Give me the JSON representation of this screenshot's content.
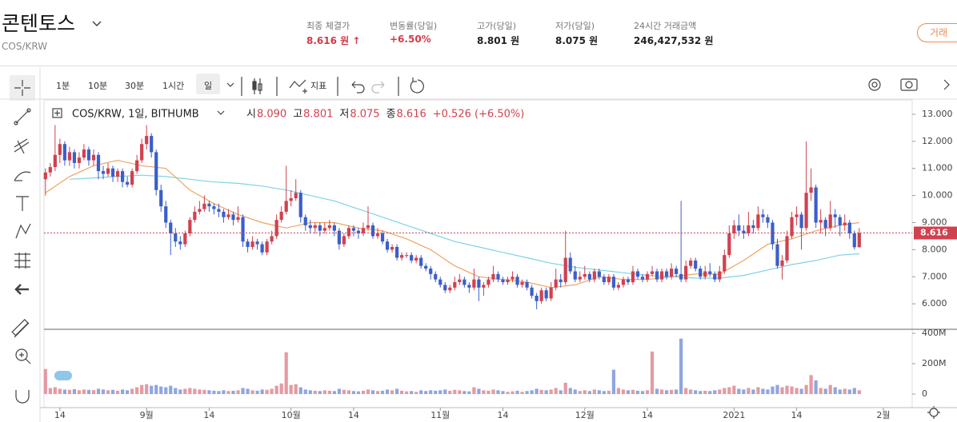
{
  "header": {
    "title": "콘텐토스",
    "pair": "COS/KRW",
    "stats": [
      {
        "label": "최종 체결가",
        "value": "8.616 원 ↑"
      },
      {
        "label": "변동률(당일)",
        "value": "+6.50%"
      },
      {
        "label": "고가(당일)",
        "value": "8.801 원"
      },
      {
        "label": "저가(당일)",
        "value": "8.075 원"
      },
      {
        "label": "24시간 거래금액",
        "value": "246,427,532 원"
      }
    ],
    "button": "거래"
  },
  "toolbar": {
    "intervals": [
      "1분",
      "10분",
      "30분",
      "1시간",
      "일"
    ],
    "indicator": "지표"
  },
  "chart_data": {
    "type": "candlestick",
    "title": "COS/KRW, 1일, BITHUMB",
    "legend": {
      "ohlc_labels": [
        "시",
        "고",
        "저",
        "종"
      ],
      "ohlc_values": [
        {
          "value": 8.09,
          "label": "8.090"
        },
        {
          "value": 8.801,
          "label": "8.801"
        },
        {
          "value": 8.075,
          "label": "8.075"
        },
        {
          "value": 8.616,
          "label": "8.616"
        }
      ],
      "change": "+0.526 (+6.50%)"
    },
    "color_up": "#d0414f",
    "color_down": "#3b5fc9",
    "xlim": [
      -0.3,
      180
    ],
    "xticks": [
      {
        "value": 3,
        "label": "14"
      },
      {
        "value": 21,
        "label": "9월"
      },
      {
        "value": 34,
        "label": "14"
      },
      {
        "value": 51,
        "label": "10월"
      },
      {
        "value": 64,
        "label": "14"
      },
      {
        "value": 82,
        "label": "11월"
      },
      {
        "value": 95,
        "label": "14"
      },
      {
        "value": 112,
        "label": "12월"
      },
      {
        "value": 125,
        "label": "14"
      },
      {
        "value": 143,
        "label": "2021"
      },
      {
        "value": 156,
        "label": "14"
      },
      {
        "value": 174,
        "label": "2월"
      }
    ],
    "ylim": [
      5.06,
      13.53
    ],
    "yticks": [
      {
        "value": 6,
        "label": "6.000"
      },
      {
        "value": 7,
        "label": "7.000"
      },
      {
        "value": 8,
        "label": "8.000"
      },
      {
        "value": 9,
        "label": "9.000"
      },
      {
        "value": 10,
        "label": "10.000"
      },
      {
        "value": 11,
        "label": "11.000"
      },
      {
        "value": 12,
        "label": "12.000"
      },
      {
        "value": 13,
        "label": "13.000"
      }
    ],
    "last_price": {
      "value": 8.616,
      "label": "8.616"
    },
    "values": [
      [
        10.6,
        11.0,
        10.0,
        10.85
      ],
      [
        10.85,
        11.2,
        10.7,
        11.05
      ],
      [
        11.05,
        12.6,
        10.9,
        11.5
      ],
      [
        11.5,
        12.1,
        11.2,
        11.9
      ],
      [
        11.9,
        12.0,
        11.1,
        11.3
      ],
      [
        11.3,
        11.8,
        11.1,
        11.6
      ],
      [
        11.6,
        11.7,
        11.0,
        11.2
      ],
      [
        11.2,
        11.6,
        11.0,
        11.4
      ],
      [
        11.4,
        11.9,
        11.3,
        11.7
      ],
      [
        11.7,
        11.8,
        11.1,
        11.3
      ],
      [
        11.3,
        11.7,
        11.1,
        11.5
      ],
      [
        11.5,
        11.6,
        10.6,
        10.9
      ],
      [
        10.9,
        11.1,
        10.6,
        10.8
      ],
      [
        10.8,
        11.2,
        10.7,
        11.0
      ],
      [
        11.0,
        11.1,
        10.5,
        10.7
      ],
      [
        10.7,
        11.0,
        10.5,
        10.9
      ],
      [
        10.9,
        11.0,
        10.3,
        10.5
      ],
      [
        10.5,
        10.7,
        10.3,
        10.4
      ],
      [
        10.4,
        11.0,
        10.3,
        10.9
      ],
      [
        10.9,
        11.5,
        10.8,
        11.3
      ],
      [
        11.3,
        12.1,
        11.2,
        11.9
      ],
      [
        11.9,
        12.6,
        11.7,
        12.2
      ],
      [
        12.2,
        12.3,
        11.4,
        11.6
      ],
      [
        11.6,
        11.7,
        10.0,
        10.2
      ],
      [
        10.2,
        10.4,
        9.4,
        9.6
      ],
      [
        9.6,
        9.8,
        8.8,
        9.0
      ],
      [
        9.0,
        9.1,
        7.8,
        8.6
      ],
      [
        8.6,
        8.8,
        8.1,
        8.3
      ],
      [
        8.3,
        8.5,
        8.0,
        8.2
      ],
      [
        8.2,
        8.7,
        8.1,
        8.6
      ],
      [
        8.6,
        9.2,
        8.5,
        9.1
      ],
      [
        9.1,
        9.6,
        9.0,
        9.4
      ],
      [
        9.4,
        9.8,
        9.3,
        9.5
      ],
      [
        9.5,
        10.0,
        9.4,
        9.7
      ],
      [
        9.7,
        9.8,
        9.4,
        9.6
      ],
      [
        9.6,
        9.7,
        9.3,
        9.5
      ],
      [
        9.5,
        9.7,
        9.2,
        9.4
      ],
      [
        9.4,
        9.5,
        9.0,
        9.2
      ],
      [
        9.2,
        9.5,
        9.1,
        9.3
      ],
      [
        9.3,
        9.4,
        8.9,
        9.1
      ],
      [
        9.1,
        9.6,
        9.0,
        9.2
      ],
      [
        9.2,
        9.3,
        8.1,
        8.3
      ],
      [
        8.3,
        8.4,
        7.9,
        8.1
      ],
      [
        8.1,
        8.5,
        8.0,
        8.3
      ],
      [
        8.3,
        8.4,
        8.0,
        8.2
      ],
      [
        8.2,
        8.3,
        7.8,
        7.9
      ],
      [
        7.9,
        8.4,
        7.8,
        8.3
      ],
      [
        8.3,
        8.7,
        8.2,
        8.5
      ],
      [
        8.5,
        9.3,
        8.4,
        9.1
      ],
      [
        9.1,
        9.6,
        9.0,
        9.4
      ],
      [
        9.4,
        11.1,
        9.3,
        9.8
      ],
      [
        9.8,
        10.2,
        9.6,
        9.9
      ],
      [
        9.9,
        10.6,
        9.8,
        10.1
      ],
      [
        10.1,
        10.2,
        9.0,
        9.2
      ],
      [
        9.2,
        9.3,
        8.7,
        8.9
      ],
      [
        8.9,
        9.1,
        8.6,
        8.8
      ],
      [
        8.8,
        9.0,
        8.6,
        8.9
      ],
      [
        8.9,
        9.0,
        8.5,
        8.7
      ],
      [
        8.7,
        9.0,
        8.6,
        8.8
      ],
      [
        8.8,
        9.1,
        8.7,
        8.9
      ],
      [
        8.9,
        9.0,
        8.5,
        8.7
      ],
      [
        8.7,
        8.8,
        8.0,
        8.2
      ],
      [
        8.2,
        8.6,
        8.1,
        8.5
      ],
      [
        8.5,
        8.9,
        8.4,
        8.8
      ],
      [
        8.8,
        8.9,
        8.5,
        8.7
      ],
      [
        8.7,
        8.8,
        8.4,
        8.6
      ],
      [
        8.6,
        9.0,
        8.5,
        8.8
      ],
      [
        8.8,
        9.6,
        8.7,
        8.9
      ],
      [
        8.9,
        9.0,
        8.4,
        8.5
      ],
      [
        8.5,
        8.8,
        8.4,
        8.6
      ],
      [
        8.6,
        8.7,
        8.2,
        8.3
      ],
      [
        8.3,
        8.4,
        7.9,
        8.0
      ],
      [
        8.0,
        8.2,
        7.9,
        8.1
      ],
      [
        8.1,
        8.2,
        7.6,
        7.7
      ],
      [
        7.7,
        7.9,
        7.6,
        7.8
      ],
      [
        7.8,
        7.9,
        7.7,
        7.8
      ],
      [
        7.8,
        7.9,
        7.5,
        7.6
      ],
      [
        7.6,
        7.8,
        7.5,
        7.7
      ],
      [
        7.7,
        7.8,
        7.3,
        7.4
      ],
      [
        7.4,
        7.5,
        7.2,
        7.3
      ],
      [
        7.3,
        7.4,
        6.9,
        7.1
      ],
      [
        7.1,
        7.2,
        6.8,
        6.9
      ],
      [
        6.9,
        7.0,
        6.6,
        6.7
      ],
      [
        6.7,
        6.8,
        6.4,
        6.5
      ],
      [
        6.5,
        6.7,
        6.4,
        6.6
      ],
      [
        6.6,
        7.0,
        6.5,
        6.8
      ],
      [
        6.8,
        7.1,
        6.7,
        6.9
      ],
      [
        6.9,
        7.0,
        6.6,
        6.7
      ],
      [
        6.7,
        6.8,
        6.4,
        6.6
      ],
      [
        6.6,
        7.3,
        6.5,
        6.9
      ],
      [
        6.9,
        7.0,
        6.1,
        6.6
      ],
      [
        6.6,
        6.8,
        6.3,
        6.7
      ],
      [
        6.7,
        7.0,
        6.6,
        6.9
      ],
      [
        6.9,
        7.4,
        6.8,
        7.1
      ],
      [
        7.1,
        7.2,
        6.8,
        6.9
      ],
      [
        6.9,
        7.0,
        6.7,
        6.8
      ],
      [
        6.8,
        7.0,
        6.7,
        6.9
      ],
      [
        6.9,
        7.2,
        6.8,
        7.0
      ],
      [
        7.0,
        7.1,
        6.6,
        6.7
      ],
      [
        6.7,
        6.9,
        6.6,
        6.8
      ],
      [
        6.8,
        6.9,
        6.5,
        6.6
      ],
      [
        6.6,
        6.7,
        6.2,
        6.3
      ],
      [
        6.3,
        6.4,
        5.8,
        6.1
      ],
      [
        6.1,
        6.6,
        6.0,
        6.5
      ],
      [
        6.5,
        6.6,
        6.1,
        6.2
      ],
      [
        6.2,
        6.8,
        6.1,
        6.6
      ],
      [
        6.6,
        7.3,
        6.5,
        6.9
      ],
      [
        6.9,
        7.1,
        6.6,
        6.8
      ],
      [
        6.8,
        8.7,
        6.7,
        7.7
      ],
      [
        7.7,
        7.9,
        7.1,
        7.2
      ],
      [
        7.2,
        7.4,
        6.8,
        6.9
      ],
      [
        6.9,
        7.2,
        6.8,
        7.0
      ],
      [
        7.0,
        7.4,
        6.9,
        7.1
      ],
      [
        7.1,
        7.2,
        6.8,
        6.9
      ],
      [
        6.9,
        7.3,
        6.8,
        7.2
      ],
      [
        7.2,
        7.3,
        6.9,
        7.0
      ],
      [
        7.0,
        7.1,
        6.7,
        6.8
      ],
      [
        6.8,
        7.1,
        6.7,
        7.0
      ],
      [
        7.0,
        7.1,
        6.5,
        6.6
      ],
      [
        6.6,
        6.8,
        6.5,
        6.7
      ],
      [
        6.7,
        7.0,
        6.6,
        6.9
      ],
      [
        6.9,
        7.0,
        6.7,
        6.8
      ],
      [
        6.8,
        7.4,
        6.7,
        7.2
      ],
      [
        7.2,
        7.3,
        6.9,
        7.0
      ],
      [
        7.0,
        7.1,
        6.8,
        6.9
      ],
      [
        6.9,
        7.2,
        6.8,
        7.1
      ],
      [
        7.1,
        7.4,
        7.0,
        7.2
      ],
      [
        7.2,
        7.3,
        6.8,
        6.9
      ],
      [
        6.9,
        7.3,
        6.8,
        7.2
      ],
      [
        7.2,
        7.3,
        6.9,
        7.0
      ],
      [
        7.0,
        7.5,
        6.9,
        7.3
      ],
      [
        7.3,
        7.4,
        7.0,
        7.1
      ],
      [
        7.1,
        9.8,
        6.8,
        6.9
      ],
      [
        6.9,
        7.6,
        6.8,
        7.4
      ],
      [
        7.4,
        7.7,
        7.3,
        7.6
      ],
      [
        7.6,
        7.7,
        7.2,
        7.3
      ],
      [
        7.3,
        7.4,
        6.9,
        7.0
      ],
      [
        7.0,
        7.4,
        6.9,
        7.2
      ],
      [
        7.2,
        7.5,
        7.0,
        7.1
      ],
      [
        7.1,
        7.2,
        6.8,
        6.9
      ],
      [
        6.9,
        7.4,
        6.8,
        7.2
      ],
      [
        7.2,
        8.0,
        7.1,
        7.8
      ],
      [
        7.8,
        8.9,
        7.7,
        8.6
      ],
      [
        8.6,
        9.1,
        8.4,
        8.9
      ],
      [
        8.9,
        9.3,
        8.5,
        8.7
      ],
      [
        8.7,
        8.9,
        8.4,
        8.6
      ],
      [
        8.6,
        9.4,
        8.5,
        8.9
      ],
      [
        8.9,
        9.1,
        8.6,
        8.8
      ],
      [
        8.8,
        9.6,
        8.7,
        9.3
      ],
      [
        9.3,
        9.5,
        9.0,
        9.2
      ],
      [
        9.2,
        9.3,
        8.8,
        9.0
      ],
      [
        9.0,
        9.1,
        8.0,
        8.2
      ],
      [
        8.2,
        8.4,
        7.3,
        7.4
      ],
      [
        7.4,
        7.8,
        6.9,
        7.6
      ],
      [
        7.6,
        8.7,
        7.5,
        8.5
      ],
      [
        8.5,
        9.4,
        8.4,
        9.2
      ],
      [
        9.2,
        9.6,
        8.9,
        9.3
      ],
      [
        9.3,
        9.4,
        8.0,
        8.8
      ],
      [
        8.8,
        12.0,
        8.7,
        10.1
      ],
      [
        10.1,
        11.0,
        9.8,
        10.3
      ],
      [
        10.3,
        10.4,
        8.8,
        9.0
      ],
      [
        9.0,
        9.5,
        8.6,
        9.1
      ],
      [
        9.1,
        9.2,
        8.5,
        8.8
      ],
      [
        8.8,
        9.8,
        8.7,
        9.3
      ],
      [
        9.3,
        9.5,
        8.8,
        9.2
      ],
      [
        9.2,
        9.3,
        8.5,
        8.9
      ],
      [
        8.9,
        9.3,
        8.7,
        9.0
      ],
      [
        9.0,
        9.1,
        8.4,
        8.6
      ],
      [
        8.6,
        8.7,
        8.0,
        8.09
      ],
      [
        8.09,
        8.801,
        8.075,
        8.616
      ]
    ],
    "ma": [
      {
        "color": "#f0a25e",
        "x": [
          0,
          5,
          10,
          15,
          20,
          25,
          30,
          35,
          40,
          45,
          50,
          55,
          60,
          65,
          70,
          75,
          80,
          85,
          90,
          95,
          100,
          105,
          110,
          115,
          120,
          125,
          130,
          135,
          140,
          145,
          150,
          155,
          160,
          165,
          169
        ],
        "values": [
          10.1,
          10.7,
          11.1,
          11.3,
          11.1,
          11.0,
          10.2,
          9.7,
          9.3,
          9.0,
          8.8,
          9.0,
          9.0,
          8.8,
          8.7,
          8.4,
          8.0,
          7.4,
          7.0,
          6.9,
          6.8,
          6.6,
          6.7,
          7.0,
          6.9,
          6.9,
          7.0,
          7.1,
          7.1,
          7.6,
          8.2,
          8.4,
          8.7,
          8.9,
          9.0
        ]
      },
      {
        "color": "#7fd2e6",
        "x": [
          5,
          10,
          15,
          20,
          25,
          30,
          35,
          40,
          45,
          50,
          55,
          60,
          65,
          70,
          75,
          80,
          85,
          90,
          95,
          100,
          105,
          110,
          115,
          120,
          125,
          130,
          135,
          140,
          145,
          150,
          155,
          160,
          165,
          169
        ],
        "values": [
          10.6,
          10.65,
          10.7,
          10.75,
          10.7,
          10.6,
          10.5,
          10.45,
          10.35,
          10.2,
          10.0,
          9.8,
          9.5,
          9.2,
          8.9,
          8.6,
          8.3,
          8.1,
          7.9,
          7.7,
          7.5,
          7.35,
          7.25,
          7.15,
          7.05,
          7.0,
          6.95,
          6.95,
          7.05,
          7.25,
          7.45,
          7.6,
          7.8,
          7.85
        ]
      }
    ],
    "volume": {
      "ylim": [
        -89,
        421
      ],
      "yticks": [
        0,
        {
          "value": 200,
          "label": "200M"
        },
        {
          "value": 400,
          "label": "400M"
        }
      ],
      "color_up": "#e49aa2",
      "color_down": "#8ea6e0",
      "values": [
        165,
        40,
        45,
        35,
        30,
        28,
        32,
        25,
        30,
        28,
        26,
        35,
        30,
        25,
        28,
        22,
        30,
        25,
        35,
        45,
        60,
        65,
        55,
        60,
        50,
        45,
        55,
        40,
        30,
        35,
        40,
        35,
        30,
        28,
        25,
        22,
        20,
        25,
        20,
        22,
        25,
        40,
        35,
        25,
        22,
        30,
        28,
        35,
        55,
        70,
        275,
        60,
        65,
        45,
        30,
        25,
        22,
        20,
        25,
        22,
        20,
        35,
        28,
        25,
        20,
        18,
        22,
        30,
        25,
        20,
        22,
        30,
        25,
        35,
        22,
        18,
        20,
        15,
        25,
        20,
        25,
        22,
        25,
        30,
        22,
        28,
        25,
        20,
        18,
        45,
        35,
        25,
        22,
        30,
        25,
        20,
        15,
        18,
        22,
        15,
        20,
        25,
        35,
        28,
        25,
        30,
        40,
        25,
        75,
        40,
        30,
        20,
        25,
        20,
        30,
        25,
        20,
        22,
        160,
        40,
        30,
        25,
        28,
        22,
        20,
        25,
        280,
        35,
        30,
        25,
        28,
        30,
        365,
        40,
        30,
        25,
        20,
        22,
        20,
        25,
        30,
        40,
        45,
        55,
        35,
        30,
        40,
        30,
        45,
        35,
        30,
        50,
        60,
        45,
        55,
        50,
        40,
        35,
        60,
        125,
        90,
        40,
        35,
        60,
        45,
        30,
        35,
        30,
        40,
        25
      ]
    }
  }
}
